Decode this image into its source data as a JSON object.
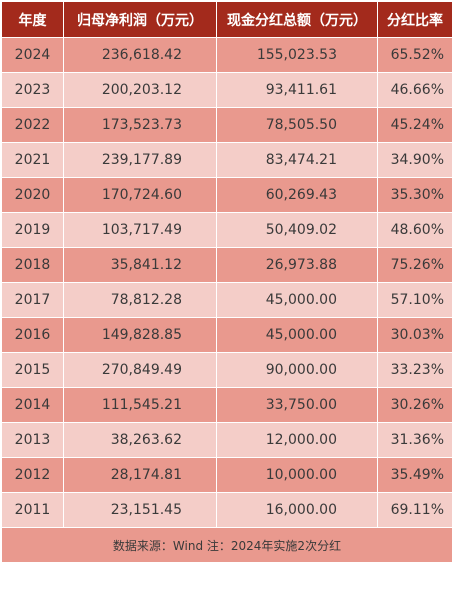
{
  "headers": [
    "年度",
    "归母净利润（万元）",
    "现金分红总额（万元）",
    "分红比率"
  ],
  "rows": [
    {
      "year": "2024",
      "net_profit": "236,618.42",
      "dividend": "155,023.53",
      "ratio": "65.52%"
    },
    {
      "year": "2023",
      "net_profit": "200,203.12",
      "dividend": "93,411.61",
      "ratio": "46.66%"
    },
    {
      "year": "2022",
      "net_profit": "173,523.73",
      "dividend": "78,505.50",
      "ratio": "45.24%"
    },
    {
      "year": "2021",
      "net_profit": "239,177.89",
      "dividend": "83,474.21",
      "ratio": "34.90%"
    },
    {
      "year": "2020",
      "net_profit": "170,724.60",
      "dividend": "60,269.43",
      "ratio": "35.30%"
    },
    {
      "year": "2019",
      "net_profit": "103,717.49",
      "dividend": "50,409.02",
      "ratio": "48.60%"
    },
    {
      "year": "2018",
      "net_profit": "35,841.12",
      "dividend": "26,973.88",
      "ratio": "75.26%"
    },
    {
      "year": "2017",
      "net_profit": "78,812.28",
      "dividend": "45,000.00",
      "ratio": "57.10%"
    },
    {
      "year": "2016",
      "net_profit": "149,828.85",
      "dividend": "45,000.00",
      "ratio": "30.03%"
    },
    {
      "year": "2015",
      "net_profit": "270,849.49",
      "dividend": "90,000.00",
      "ratio": "33.23%"
    },
    {
      "year": "2014",
      "net_profit": "111,545.21",
      "dividend": "33,750.00",
      "ratio": "30.26%"
    },
    {
      "year": "2013",
      "net_profit": "38,263.62",
      "dividend": "12,000.00",
      "ratio": "31.36%"
    },
    {
      "year": "2012",
      "net_profit": "28,174.81",
      "dividend": "10,000.00",
      "ratio": "35.49%"
    },
    {
      "year": "2011",
      "net_profit": "23,151.45",
      "dividend": "16,000.00",
      "ratio": "69.11%"
    }
  ],
  "footnote": "数据来源：Wind 注：2024年实施2次分红",
  "colors": {
    "header_bg": "#a32a1c",
    "row_dark": "#e9998e",
    "row_light": "#f4cdc8"
  }
}
